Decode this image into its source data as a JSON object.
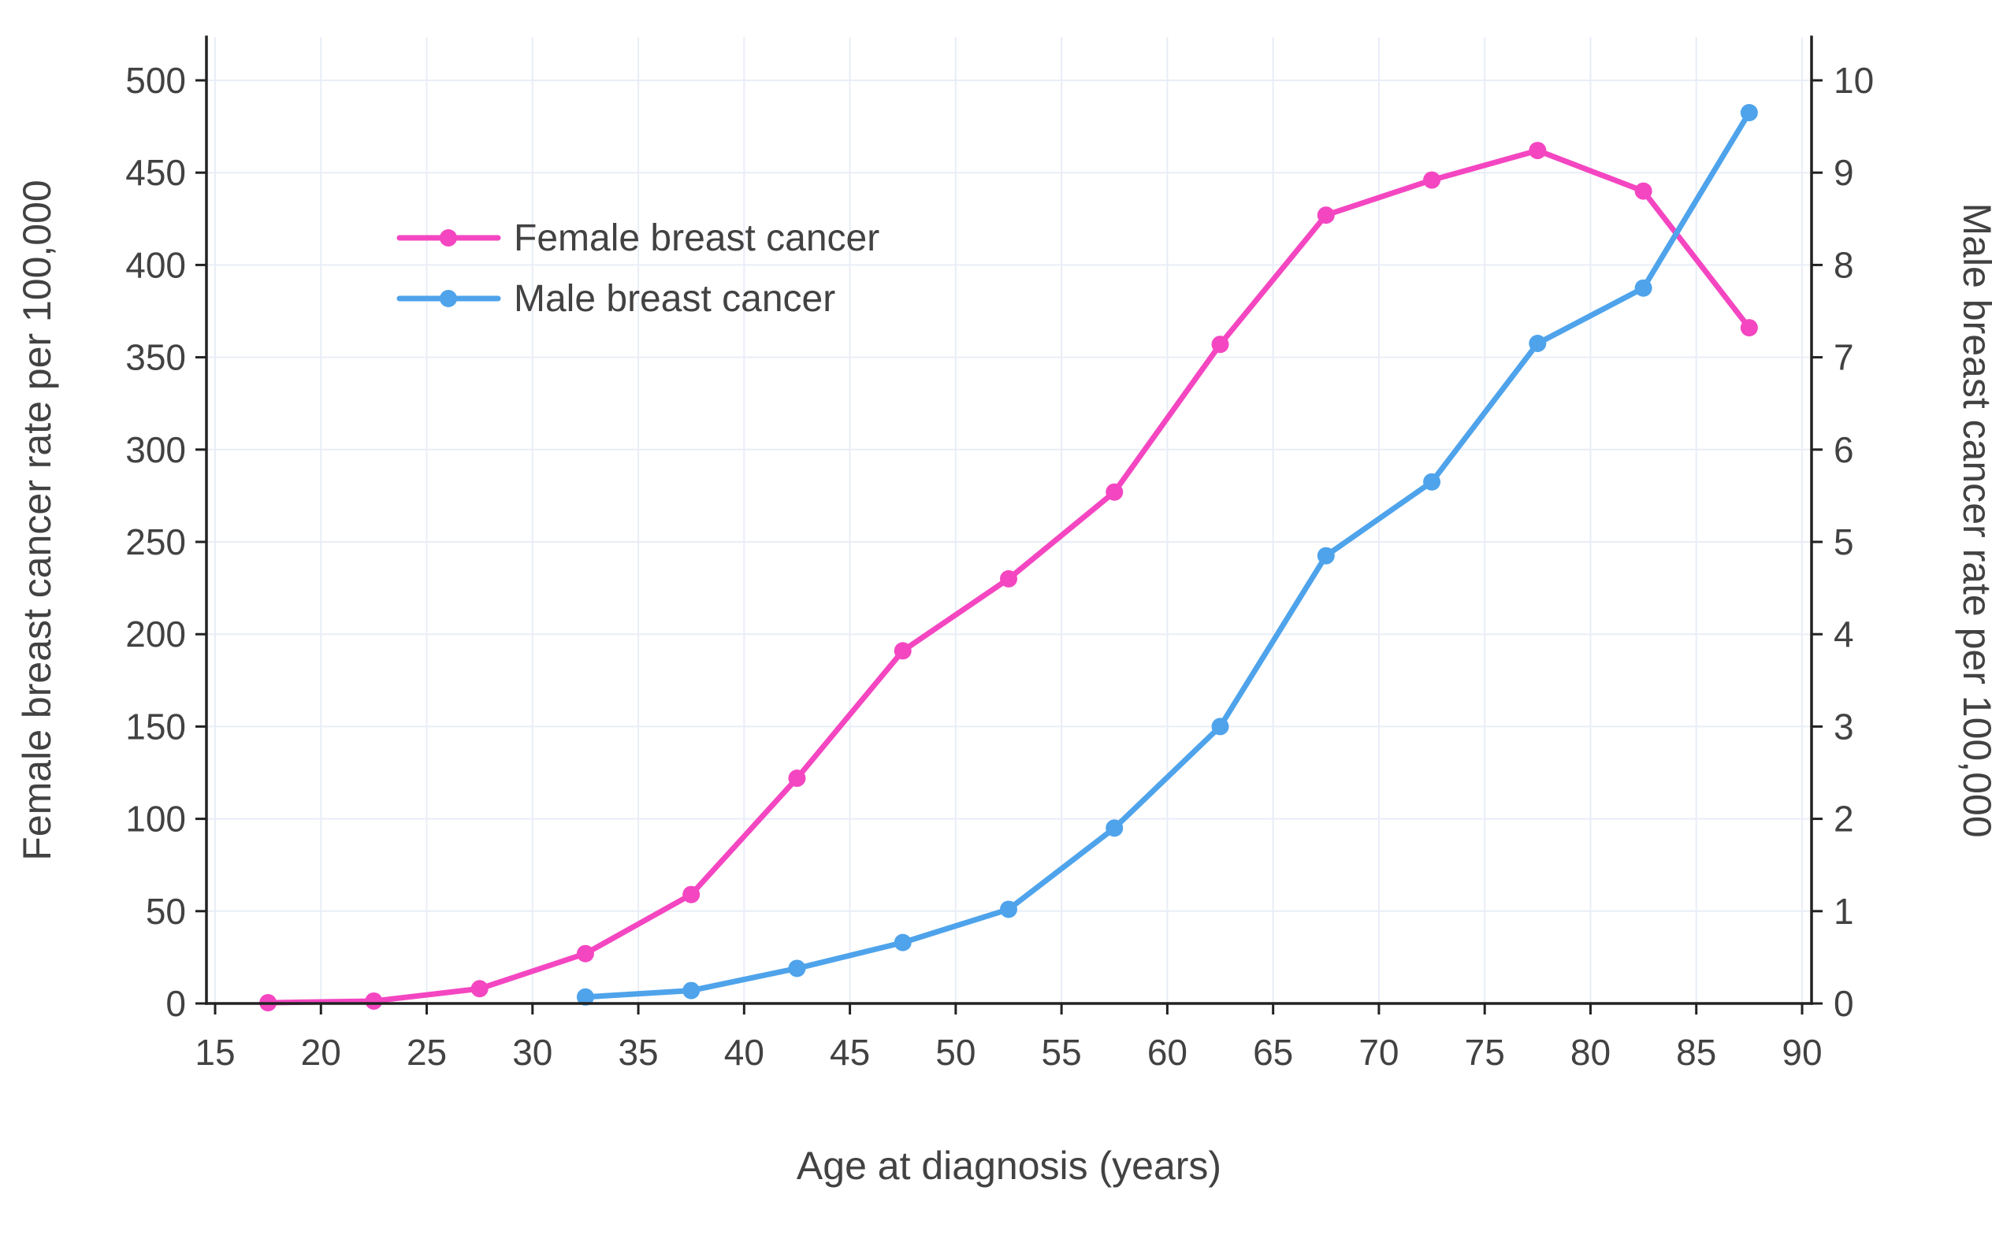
{
  "page": {
    "background_color": "#ffffff"
  },
  "chart_data": {
    "type": "line",
    "title": "",
    "xlabel": "Age at diagnosis (years)",
    "ylabel_left": "Female breast cancer rate per 100,000",
    "ylabel_right": "Male breast cancer rate per 100,000",
    "x_ticks": [
      15,
      20,
      25,
      30,
      35,
      40,
      45,
      50,
      55,
      60,
      65,
      70,
      75,
      80,
      85,
      90
    ],
    "y_left_ticks": [
      0,
      50,
      100,
      150,
      200,
      250,
      300,
      350,
      400,
      450,
      500
    ],
    "y_right_ticks": [
      0,
      1,
      2,
      3,
      4,
      5,
      6,
      7,
      8,
      9,
      10
    ],
    "xlim": [
      14.6,
      90.5
    ],
    "ylim_left": [
      0,
      500
    ],
    "ylim_right": [
      0,
      10
    ],
    "grid": true,
    "legend_position": "inside-upper-left",
    "colors": {
      "female": "#F446C1",
      "male": "#4EA3EB",
      "axis": "#222222",
      "grid": "#E9EDF7",
      "text": "#424242"
    },
    "series": [
      {
        "name": "Female breast cancer",
        "axis": "left",
        "color_key": "female",
        "x": [
          17.5,
          22.5,
          27.5,
          32.5,
          37.5,
          42.5,
          47.5,
          52.5,
          57.5,
          62.5,
          67.5,
          72.5,
          77.5,
          82.5,
          87.5
        ],
        "y": [
          0.4,
          1.3,
          8,
          27,
          59,
          122,
          191,
          230,
          277,
          357,
          427,
          446,
          462,
          440,
          366
        ]
      },
      {
        "name": "Male breast cancer",
        "axis": "right",
        "color_key": "male",
        "x": [
          32.5,
          37.5,
          42.5,
          47.5,
          52.5,
          57.5,
          62.5,
          67.5,
          72.5,
          77.5,
          82.5,
          87.5
        ],
        "y": [
          0.07,
          0.14,
          0.38,
          0.66,
          1.02,
          1.9,
          3.0,
          4.85,
          5.65,
          7.15,
          7.75,
          9.65
        ]
      }
    ]
  }
}
